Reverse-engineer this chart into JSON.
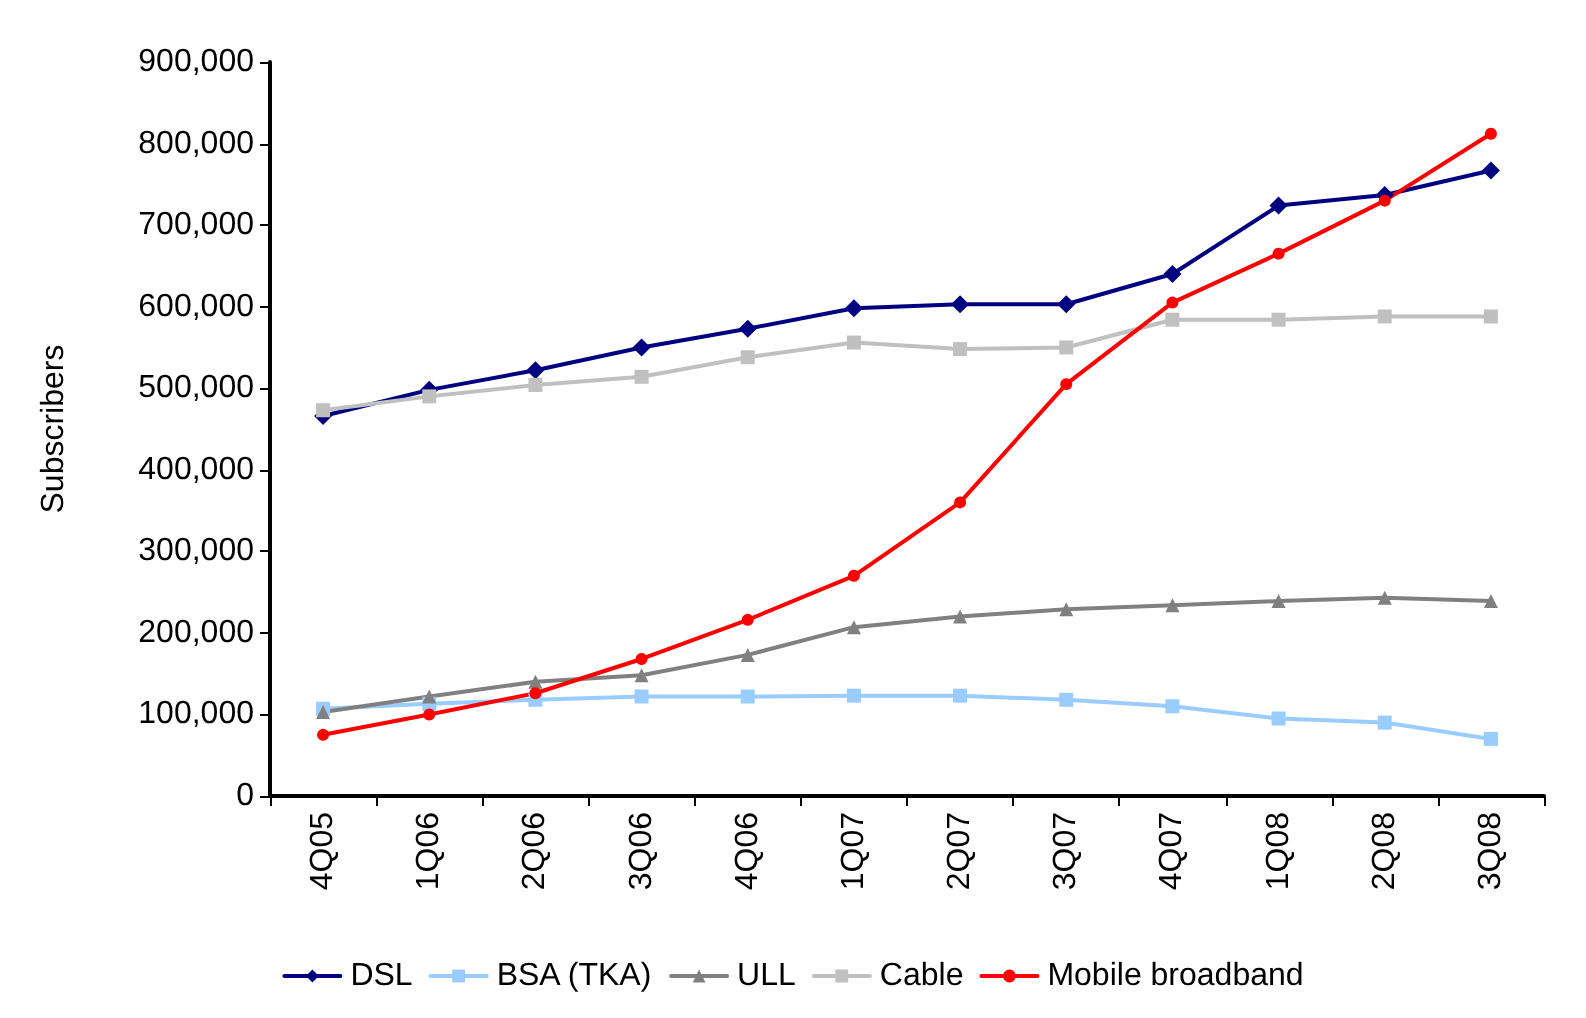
{
  "chart_data": {
    "type": "line",
    "ylabel": "Subscribers",
    "categories": [
      "4Q05",
      "1Q06",
      "2Q06",
      "3Q06",
      "4Q06",
      "1Q07",
      "2Q07",
      "3Q07",
      "4Q07",
      "1Q08",
      "2Q08",
      "3Q08"
    ],
    "series": [
      {
        "name": "DSL",
        "color": "#000080",
        "marker": "diamond",
        "values": [
          466000,
          498000,
          522000,
          550000,
          573000,
          598000,
          603000,
          603000,
          640000,
          724000,
          737000,
          767000
        ]
      },
      {
        "name": "BSA (TKA)",
        "color": "#99ccff",
        "marker": "square",
        "values": [
          107000,
          113000,
          118000,
          122000,
          122000,
          123000,
          123000,
          118000,
          110000,
          95000,
          90000,
          70000
        ]
      },
      {
        "name": "ULL",
        "color": "#808080",
        "marker": "triangle",
        "values": [
          103000,
          122000,
          140000,
          148000,
          173000,
          207000,
          220000,
          229000,
          234000,
          239000,
          243000,
          239000
        ]
      },
      {
        "name": "Cable",
        "color": "#c0c0c0",
        "marker": "square",
        "values": [
          473000,
          490000,
          504000,
          514000,
          538000,
          556000,
          548000,
          550000,
          584000,
          584000,
          588000,
          588000
        ]
      },
      {
        "name": "Mobile broadband",
        "color": "#ff0000",
        "marker": "circle",
        "values": [
          75000,
          100000,
          126000,
          168000,
          216000,
          270000,
          360000,
          505000,
          605000,
          665000,
          730000,
          812000
        ]
      }
    ],
    "ylim": [
      0,
      900000
    ],
    "yticks": [
      0,
      {
        "value": 100000,
        "label": "100,000"
      },
      {
        "value": 200000,
        "label": "200,000"
      },
      {
        "value": 300000,
        "label": "300,000"
      },
      {
        "value": 400000,
        "label": "400,000"
      },
      {
        "value": 500000,
        "label": "500,000"
      },
      {
        "value": 600000,
        "label": "600,000"
      },
      {
        "value": 700000,
        "label": "700,000"
      },
      {
        "value": 800000,
        "label": "800,000"
      },
      {
        "value": 900000,
        "label": "900,000"
      }
    ],
    "grid": false,
    "legend": "bottom",
    "line_style": "solid"
  }
}
